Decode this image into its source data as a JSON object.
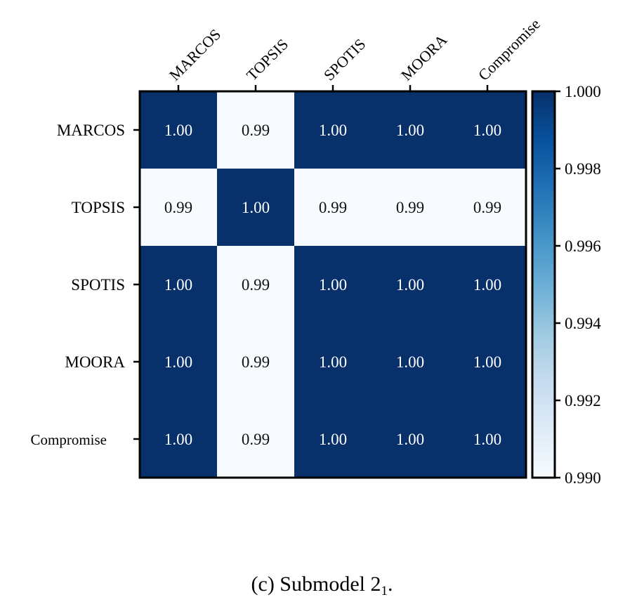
{
  "chart_data": {
    "type": "heatmap",
    "rows": [
      "MARCOS",
      "TOPSIS",
      "SPOTIS",
      "MOORA",
      "Compromise"
    ],
    "columns": [
      "MARCOS",
      "TOPSIS",
      "SPOTIS",
      "MOORA",
      "Compromise"
    ],
    "values": [
      [
        1.0,
        0.99,
        1.0,
        1.0,
        1.0
      ],
      [
        0.99,
        1.0,
        0.99,
        0.99,
        0.99
      ],
      [
        1.0,
        0.99,
        1.0,
        1.0,
        1.0
      ],
      [
        1.0,
        0.99,
        1.0,
        1.0,
        1.0
      ],
      [
        1.0,
        0.99,
        1.0,
        1.0,
        1.0
      ]
    ],
    "cell_labels": [
      [
        "1.00",
        "0.99",
        "1.00",
        "1.00",
        "1.00"
      ],
      [
        "0.99",
        "1.00",
        "0.99",
        "0.99",
        "0.99"
      ],
      [
        "1.00",
        "0.99",
        "1.00",
        "1.00",
        "1.00"
      ],
      [
        "1.00",
        "0.99",
        "1.00",
        "1.00",
        "1.00"
      ],
      [
        "1.00",
        "0.99",
        "1.00",
        "1.00",
        "1.00"
      ]
    ],
    "colorbar": {
      "min": 0.99,
      "max": 1.0,
      "ticks": [
        1.0,
        0.998,
        0.996,
        0.994,
        0.992,
        0.99
      ],
      "tick_labels": [
        "1.000",
        "0.998",
        "0.996",
        "0.994",
        "0.992",
        "0.990"
      ],
      "colormap": "Blues",
      "low_color": "#f7fbff",
      "high_color": "#08306b"
    }
  },
  "caption": {
    "prefix": "(c)  Submodel 2",
    "subscript": "1",
    "suffix": "."
  }
}
